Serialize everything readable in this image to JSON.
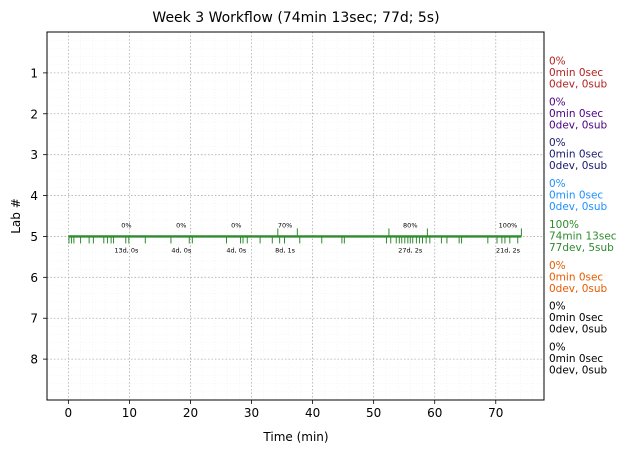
{
  "chart_data": {
    "type": "timeline",
    "title": "Week 3 Workflow (74min 13sec; 77d; 5s)",
    "xlabel": "Time (min)",
    "ylabel": "Lab #",
    "xlim": [
      -3.5,
      77.9
    ],
    "ylim": [
      9,
      0
    ],
    "xticks": [
      0,
      10,
      20,
      30,
      40,
      50,
      60,
      70
    ],
    "yticks": [
      1,
      2,
      3,
      4,
      5,
      6,
      7,
      8
    ],
    "grid": true,
    "lab_summaries": [
      {
        "lab": 1,
        "lines": [
          "0%",
          "0min 0sec",
          "0dev, 0sub"
        ],
        "color": "#b22222"
      },
      {
        "lab": 2,
        "lines": [
          "0%",
          "0min 0sec",
          "0dev, 0sub"
        ],
        "color": "#4b0082"
      },
      {
        "lab": 3,
        "lines": [
          "0%",
          "0min 0sec",
          "0dev, 0sub"
        ],
        "color": "#191970"
      },
      {
        "lab": 4,
        "lines": [
          "0%",
          "0min 0sec",
          "0dev, 0sub"
        ],
        "color": "#1e90ff"
      },
      {
        "lab": 5,
        "lines": [
          "100%",
          "74min 13sec",
          "77dev, 5sub"
        ],
        "color": "#2e8b2e"
      },
      {
        "lab": 6,
        "lines": [
          "0%",
          "0min 0sec",
          "0dev, 0sub"
        ],
        "color": "#e65c00"
      },
      {
        "lab": 7,
        "lines": [
          "0%",
          "0min 0sec",
          "0dev, 0sub"
        ],
        "color": "#000000"
      },
      {
        "lab": 8,
        "lines": [
          "0%",
          "0min 0sec",
          "0dev, 0sub"
        ],
        "color": "#000000"
      }
    ],
    "active_lab": {
      "lab": 5,
      "start": 0,
      "end": 74.2,
      "color": "#2e8b2e",
      "dev_ticks": [
        0.1,
        0.5,
        0.9,
        2.0,
        3.4,
        4.1,
        5.8,
        6.4,
        7.0,
        7.4,
        9.4,
        9.9,
        12.6,
        16.8,
        19.8,
        20.3,
        25.9,
        28.2,
        28.6,
        29.3,
        31.4,
        33.4,
        34.6,
        35.4,
        37.9,
        41.5,
        44.8,
        45.2,
        52.1,
        52.8,
        53.7,
        54.2,
        54.6,
        55.1,
        55.6,
        56.0,
        56.4,
        57.0,
        57.5,
        58.0,
        58.6,
        59.2,
        61.1,
        62.0,
        64.0,
        64.4,
        68.7,
        70.2,
        71.0,
        71.5,
        72.3,
        73.6
      ],
      "sub_ticks": [
        34.3,
        37.5,
        52.5,
        58.8,
        74.2
      ],
      "segment_labels": [
        {
          "x": 9.5,
          "pct": "0%",
          "info": "13d, 0s"
        },
        {
          "x": 18.5,
          "pct": "0%",
          "info": "4d, 0s"
        },
        {
          "x": 27.5,
          "pct": "0%",
          "info": "4d, 0s"
        },
        {
          "x": 35.5,
          "pct": "70%",
          "info": "8d, 1s"
        },
        {
          "x": 56.0,
          "pct": "80%",
          "info": "27d, 2s"
        },
        {
          "x": 72.0,
          "pct": "100%",
          "info": "21d, 2s"
        }
      ]
    }
  }
}
